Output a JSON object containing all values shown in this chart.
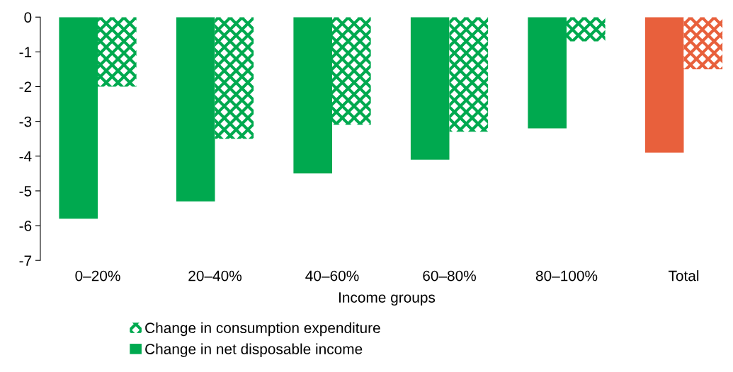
{
  "chart_data": {
    "type": "bar",
    "xlabel": "Income groups",
    "categories": [
      "0–20%",
      "20–40%",
      "40–60%",
      "60–80%",
      "80–100%",
      "Total"
    ],
    "series": [
      {
        "name": "Change in net disposable income",
        "color": "#00a94f",
        "colors": [
          "#00a94f",
          "#00a94f",
          "#00a94f",
          "#00a94f",
          "#00a94f",
          "#e8603c"
        ],
        "values": [
          -5.8,
          -5.3,
          -4.5,
          -4.1,
          -3.2,
          -3.9
        ]
      },
      {
        "name": "Change in consumption expenditure",
        "color": "#00a94f",
        "colors": [
          "#00a94f",
          "#00a94f",
          "#00a94f",
          "#00a94f",
          "#00a94f",
          "#e8603c"
        ],
        "values": [
          -2.0,
          -3.5,
          -3.1,
          -3.3,
          -0.7,
          -1.5
        ]
      }
    ],
    "ylim": [
      -7,
      0
    ],
    "yticks": [
      {
        "value": 0,
        "label": "0"
      },
      {
        "value": -1,
        "label": "-1"
      },
      {
        "value": -2,
        "label": "-2"
      },
      {
        "value": -3,
        "label": "-3"
      },
      {
        "value": -4,
        "label": "-4"
      },
      {
        "value": -5,
        "label": "-5"
      },
      {
        "value": -6,
        "label": "-6"
      },
      {
        "value": -7,
        "label": "-7"
      }
    ],
    "grid": false,
    "legend": "bottom"
  }
}
